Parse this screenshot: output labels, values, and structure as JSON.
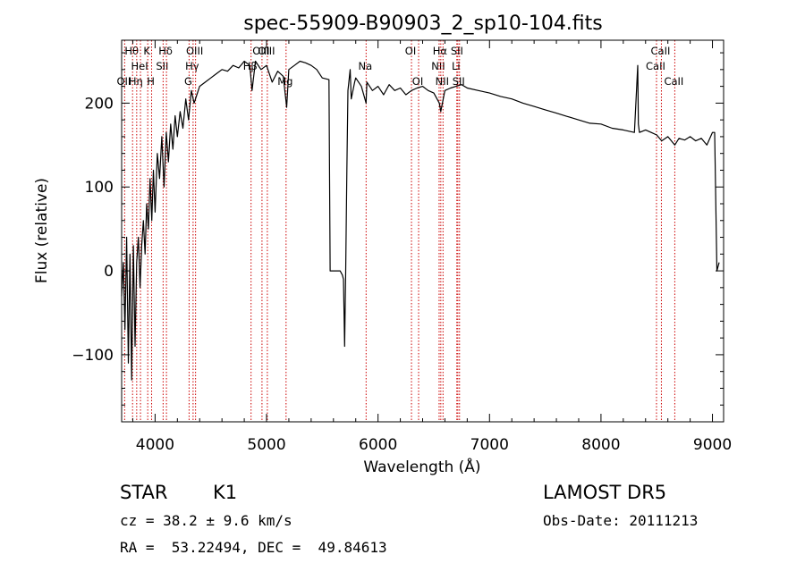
{
  "chart_data": {
    "type": "line",
    "title": "spec-55909-B90903_2_sp10-104.fits",
    "xlabel": "Wavelength (Å)",
    "ylabel": "Flux (relative)",
    "xlim": [
      3700,
      9100
    ],
    "ylim": [
      -180,
      275
    ],
    "xticks": [
      4000,
      5000,
      6000,
      7000,
      8000,
      9000
    ],
    "xtick_labels": [
      "4000",
      "5000",
      "6000",
      "7000",
      "8000",
      "9000"
    ],
    "yticks": [
      -100,
      0,
      100,
      200
    ],
    "ytick_labels": [
      "−100",
      "0",
      "100",
      "200"
    ],
    "grid": false,
    "line_color": "#000000",
    "marker_color": "#cc0000",
    "series": [
      {
        "x": [
          3700,
          3715,
          3730,
          3745,
          3760,
          3775,
          3790,
          3805,
          3820,
          3835,
          3850,
          3865,
          3880,
          3895,
          3910,
          3925,
          3940,
          3955,
          3970,
          3985,
          4000,
          4020,
          4040,
          4060,
          4080,
          4100,
          4120,
          4140,
          4160,
          4180,
          4200,
          4225,
          4250,
          4275,
          4300,
          4325,
          4350,
          4375,
          4400,
          4450,
          4500,
          4550,
          4600,
          4650,
          4700,
          4750,
          4800,
          4850,
          4870,
          4900,
          4950,
          5000,
          5050,
          5100,
          5150,
          5180,
          5200,
          5250,
          5300,
          5350,
          5400,
          5450,
          5500,
          5560,
          5570,
          5620,
          5660,
          5680,
          5690,
          5700,
          5710,
          5720,
          5730,
          5750,
          5760,
          5790,
          5800,
          5850,
          5893,
          5900,
          5950,
          6000,
          6050,
          6100,
          6150,
          6200,
          6250,
          6300,
          6350,
          6400,
          6450,
          6500,
          6550,
          6563,
          6600,
          6650,
          6700,
          6750,
          6800,
          6900,
          7000,
          7100,
          7200,
          7300,
          7400,
          7500,
          7600,
          7700,
          7800,
          7900,
          8000,
          8100,
          8200,
          8300,
          8330,
          8335,
          8345,
          8400,
          8450,
          8500,
          8545,
          8600,
          8662,
          8700,
          8750,
          8800,
          8850,
          8900,
          8950,
          9000,
          9020,
          9040,
          9060
        ],
        "y": [
          -30,
          10,
          -70,
          40,
          -110,
          20,
          -130,
          30,
          -90,
          10,
          40,
          -20,
          30,
          60,
          20,
          80,
          50,
          110,
          60,
          120,
          70,
          140,
          110,
          160,
          100,
          165,
          130,
          175,
          145,
          185,
          160,
          190,
          170,
          205,
          180,
          215,
          200,
          210,
          220,
          225,
          230,
          235,
          240,
          238,
          245,
          242,
          250,
          245,
          215,
          250,
          240,
          245,
          225,
          238,
          232,
          195,
          240,
          245,
          250,
          248,
          245,
          240,
          230,
          228,
          0,
          0,
          0,
          -5,
          -10,
          -90,
          0,
          120,
          215,
          240,
          205,
          225,
          230,
          220,
          200,
          225,
          215,
          220,
          210,
          222,
          215,
          218,
          210,
          215,
          218,
          220,
          215,
          212,
          200,
          190,
          215,
          218,
          220,
          222,
          218,
          215,
          212,
          208,
          205,
          200,
          196,
          192,
          188,
          184,
          180,
          176,
          175,
          170,
          168,
          165,
          245,
          175,
          165,
          168,
          165,
          162,
          155,
          160,
          150,
          158,
          156,
          160,
          155,
          158,
          150,
          165,
          165,
          0,
          10
        ]
      }
    ],
    "line_markers": [
      {
        "x": 3727,
        "label": "OII",
        "row": 2
      },
      {
        "x": 3798,
        "label": "Hθ",
        "row": 0
      },
      {
        "x": 3835,
        "label": "Hη",
        "row": 2
      },
      {
        "x": 3869,
        "label": "HeI",
        "row": 1
      },
      {
        "x": 3934,
        "label": "K",
        "row": 0
      },
      {
        "x": 3969,
        "label": "H",
        "row": 2
      },
      {
        "x": 4072,
        "label": "SII",
        "row": 1
      },
      {
        "x": 4102,
        "label": "Hδ",
        "row": 0
      },
      {
        "x": 4305,
        "label": "G",
        "row": 2
      },
      {
        "x": 4341,
        "label": "Hγ",
        "row": 1
      },
      {
        "x": 4363,
        "label": "OIII",
        "row": 0
      },
      {
        "x": 4861,
        "label": "Hβ",
        "row": 1
      },
      {
        "x": 4959,
        "label": "OIII",
        "row": 0
      },
      {
        "x": 5007,
        "label": "OIII",
        "row": 0
      },
      {
        "x": 5175,
        "label": "Mg",
        "row": 2
      },
      {
        "x": 5893,
        "label": "Na",
        "row": 1
      },
      {
        "x": 6300,
        "label": "OI",
        "row": 0
      },
      {
        "x": 6364,
        "label": "OI",
        "row": 2
      },
      {
        "x": 6548,
        "label": "NII",
        "row": 1
      },
      {
        "x": 6563,
        "label": "Hα",
        "row": 0
      },
      {
        "x": 6583,
        "label": "NII",
        "row": 2
      },
      {
        "x": 6707,
        "label": "Li",
        "row": 1
      },
      {
        "x": 6716,
        "label": "SII",
        "row": 0
      },
      {
        "x": 6731,
        "label": "SII",
        "row": 2
      },
      {
        "x": 8498,
        "label": "CaII",
        "row": 1
      },
      {
        "x": 8542,
        "label": "CaII",
        "row": 0
      },
      {
        "x": 8662,
        "label": "CaII",
        "row": 2
      }
    ]
  },
  "info": {
    "object_class": "STAR",
    "subclass": "K1",
    "survey": "LAMOST DR5",
    "cz": "cz = 38.2 ± 9.6 km/s",
    "obs_date": "Obs-Date: 20111213",
    "radec": "RA =  53.22494, DEC =  49.84613"
  }
}
